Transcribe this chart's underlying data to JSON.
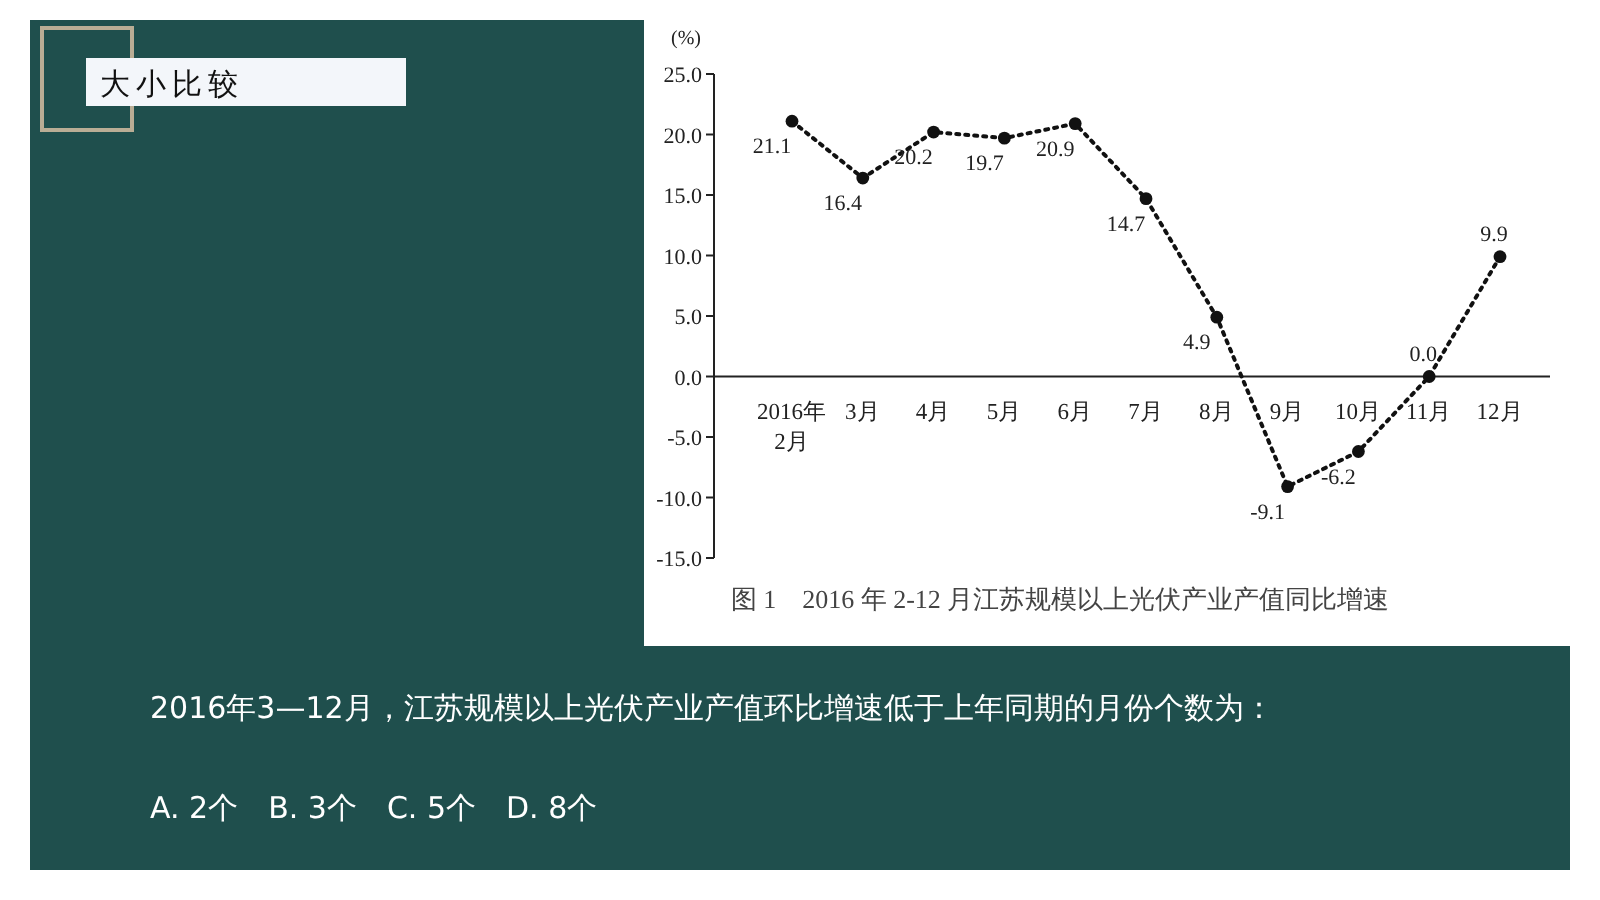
{
  "chart_data": {
    "type": "line",
    "title": "图 1　2016 年 2-12 月江苏规模以上光伏产业产值同比增速",
    "ylabel": "(%)",
    "categories": [
      "2016年\n2月",
      "3月",
      "4月",
      "5月",
      "6月",
      "7月",
      "8月",
      "9月",
      "10月",
      "11月",
      "12月"
    ],
    "series": [
      {
        "color": "#111111",
        "values": [
          21.1,
          16.4,
          20.2,
          19.7,
          20.9,
          14.7,
          4.9,
          -9.1,
          -6.2,
          0.0,
          9.9
        ],
        "value_labels": [
          "21.1",
          "16.4",
          "20.2",
          "19.7",
          "20.9",
          "14.7",
          "4.9",
          "-9.1",
          "-6.2",
          "0.0",
          "9.9"
        ]
      }
    ],
    "ylim": [
      -15,
      25
    ],
    "yticks": [
      {
        "value": -15,
        "label": "-15.0"
      },
      {
        "value": -10,
        "label": "-10.0"
      },
      {
        "value": -5,
        "label": "-5.0"
      },
      {
        "value": 0,
        "label": "0.0"
      },
      {
        "value": 5,
        "label": "5.0"
      },
      {
        "value": 10,
        "label": "10.0"
      },
      {
        "value": 15,
        "label": "15.0"
      },
      {
        "value": 20,
        "label": "20.0"
      },
      {
        "value": 25,
        "label": "25.0"
      }
    ],
    "marker": "circle",
    "line_style": "dotted",
    "grid": false,
    "annotations": [
      "大小比较",
      "2016年3—12月，江苏规模以上光伏产业产值环比增速低于上年同期的月份个数为：",
      "A. 2个　B. 3个　C. 5个　D. 8个"
    ]
  }
}
